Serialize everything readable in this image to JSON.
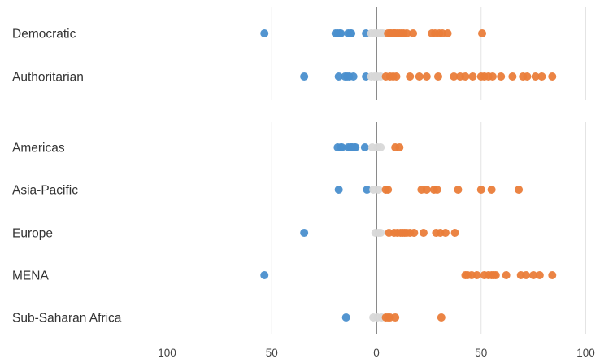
{
  "chart_data": {
    "type": "scatter",
    "title": "",
    "xlabel": "",
    "ylabel": "",
    "xlim": [
      -100,
      100
    ],
    "x_ticks": [
      -100,
      -50,
      0,
      50,
      100
    ],
    "x_tick_labels": [
      "100",
      "50",
      "0",
      "50",
      "100"
    ],
    "grid": true,
    "colors": {
      "negative": "#4a8fce",
      "neutral": "#d8d8d8",
      "positive": "#ea7d3a",
      "zero_line": "#8a8a8a",
      "grid": "#e4e4e4"
    },
    "groups": [
      {
        "rows": [
          {
            "label": "Democratic",
            "values": [
              -53.5,
              -19.5,
              -18.5,
              -17.5,
              -17,
              -13.5,
              -12.5,
              -12,
              -5,
              -2.5,
              -1,
              0.5,
              2,
              3,
              5.5,
              6.5,
              7,
              8,
              8.5,
              9,
              10,
              11,
              12,
              13,
              14.5,
              17.5,
              26.5,
              28,
              30,
              31.5,
              34,
              50.5
            ]
          },
          {
            "label": "Authoritarian",
            "values": [
              -34.5,
              -18,
              -15,
              -14,
              -13,
              -11,
              -5,
              -2.5,
              -1,
              0.5,
              2,
              4.5,
              6.5,
              8,
              9.5,
              16,
              20.5,
              24,
              29.5,
              37,
              40,
              42.5,
              46,
              50,
              51.5,
              53.5,
              55.5,
              59.5,
              65,
              70,
              72,
              76,
              79,
              84
            ]
          }
        ]
      },
      {
        "rows": [
          {
            "label": "Americas",
            "values": [
              -18.5,
              -17,
              -16.5,
              -13.5,
              -12.5,
              -12,
              -11.5,
              -10.5,
              -10,
              -5.5,
              -2,
              0.5,
              2,
              9,
              11
            ]
          },
          {
            "label": "Asia-Pacific",
            "values": [
              -18,
              -4.5,
              -1.5,
              1,
              4.5,
              5.5,
              21.5,
              24,
              27.5,
              29,
              39,
              50,
              55,
              68
            ]
          },
          {
            "label": "Europe",
            "values": [
              -34.5,
              -0.5,
              1,
              2,
              6,
              8.5,
              10,
              11.5,
              12.5,
              13.5,
              14.5,
              16,
              18,
              22.5,
              28.5,
              30.5,
              33,
              37.5
            ]
          },
          {
            "label": "MENA",
            "values": [
              -53.5,
              42.5,
              43.5,
              45.5,
              48,
              51.5,
              53.5,
              55,
              56,
              57,
              62,
              69,
              71.5,
              75,
              78,
              84
            ]
          },
          {
            "label": "Sub-Saharan Africa",
            "values": [
              -14.5,
              -1.5,
              0.5,
              2.5,
              4.5,
              5.5,
              6.5,
              9,
              31
            ]
          }
        ]
      }
    ]
  }
}
